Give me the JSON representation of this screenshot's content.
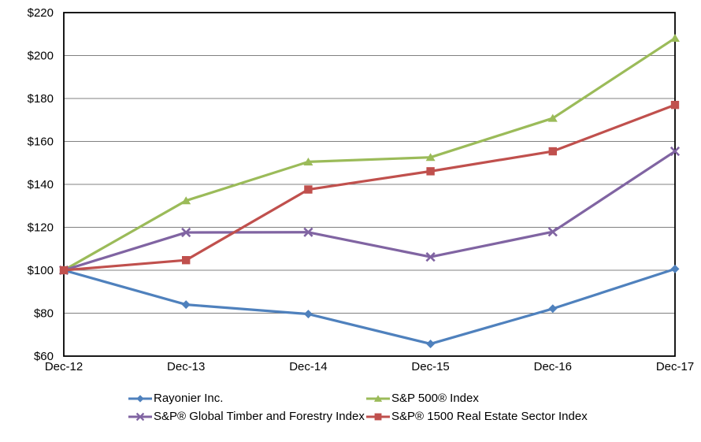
{
  "chart_data": {
    "type": "line",
    "title": "",
    "xlabel": "",
    "ylabel": "",
    "categories": [
      "Dec-12",
      "Dec-13",
      "Dec-14",
      "Dec-15",
      "Dec-16",
      "Dec-17"
    ],
    "series": [
      {
        "name": "Rayonier Inc.",
        "marker": "diamond",
        "color": "#4F81BD",
        "values": [
          100,
          84.0,
          79.6,
          65.7,
          82.1,
          100.6
        ]
      },
      {
        "name": "S&P 500® Index",
        "marker": "triangle",
        "color": "#9BBB59",
        "values": [
          100,
          132.4,
          150.5,
          152.6,
          170.8,
          208.1
        ]
      },
      {
        "name": "S&P® Global Timber and Forestry Index",
        "marker": "x",
        "color": "#8064A2",
        "values": [
          100,
          117.6,
          117.7,
          106.2,
          117.9,
          155.4
        ]
      },
      {
        "name": "S&P® 1500 Real Estate Sector Index",
        "marker": "square",
        "color": "#C0504D",
        "values": [
          100,
          104.7,
          137.6,
          146.1,
          155.4,
          177.0
        ]
      }
    ],
    "ylim": [
      60,
      220
    ],
    "y_step": 20,
    "y_tick_values": [
      60,
      80,
      100,
      120,
      140,
      160,
      180,
      200,
      220
    ],
    "y_tick_labels": [
      "$60",
      "$80",
      "$100",
      "$120",
      "$140",
      "$160",
      "$180",
      "$200",
      "$220"
    ],
    "grid": "horizontal",
    "legend_position": "bottom-two-columns",
    "colors": {
      "gridline": "#808080",
      "axis": "#000000",
      "background": "#FFFFFF"
    }
  }
}
